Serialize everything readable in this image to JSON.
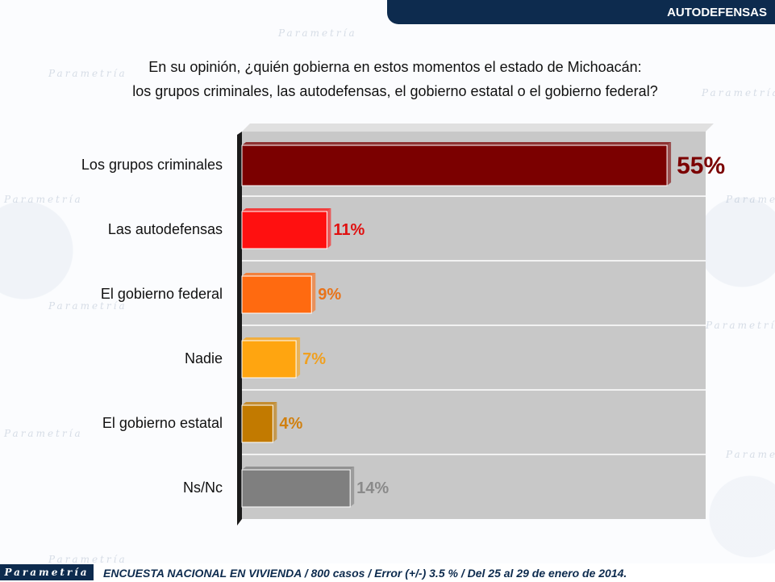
{
  "header": {
    "section_label": "AUTODEFENSAS"
  },
  "question": {
    "line1": "En su opinión, ¿quién gobierna en estos momentos el estado de Michoacán:",
    "line2": "los grupos criminales, las autodefensas, el gobierno estatal o el gobierno federal?"
  },
  "watermark": {
    "text": "Parametría"
  },
  "footer": {
    "logo_text": "Parametría",
    "note": "ENCUESTA NACIONAL EN VIVIENDA / 800 casos / Error (+/-) 3.5 % / Del 25 al 29 de enero de 2014."
  },
  "chart_data": {
    "type": "bar",
    "orientation": "horizontal",
    "categories": [
      "Los grupos criminales",
      "Las autodefensas",
      "El gobierno federal",
      "Nadie",
      "El gobierno estatal",
      "Ns/Nc"
    ],
    "values": [
      55,
      11,
      9,
      7,
      4,
      14
    ],
    "value_labels": [
      "55%",
      "11%",
      "9%",
      "7%",
      "4%",
      "14%"
    ],
    "colors": [
      "#7b0000",
      "#ff1010",
      "#ff6a10",
      "#ffa510",
      "#c27a00",
      "#7f7f7f"
    ],
    "label_colors": [
      "#7b0000",
      "#e01010",
      "#e8731a",
      "#f0a020",
      "#d08010",
      "#8a8a8a"
    ],
    "xlim": [
      0,
      60
    ],
    "grid": true,
    "plot_background": "#c8c8c8"
  }
}
